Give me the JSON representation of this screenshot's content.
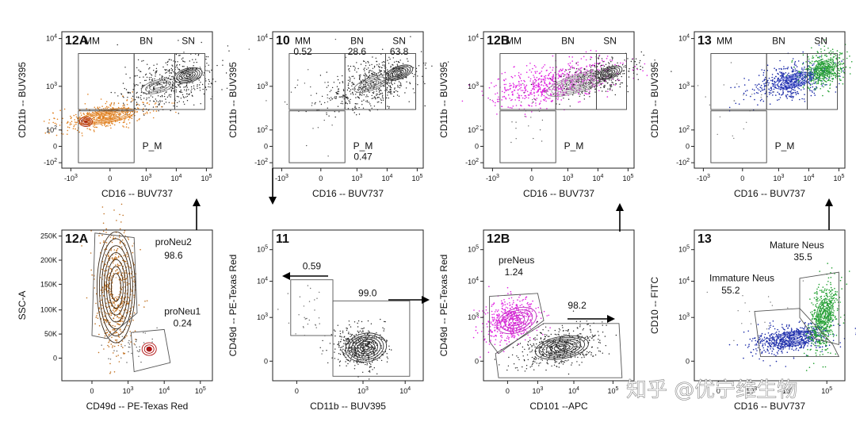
{
  "watermark": "知乎 @优宁维生物",
  "chart_data": [
    {
      "type": "scatter",
      "panel_label": "12A",
      "xlabel": "CD16 -- BUV737",
      "ylabel": "CD11b -- BUV395",
      "x_ticks": [
        "-10 3",
        "0",
        "10 3",
        "10 4",
        "10 5"
      ],
      "y_ticks": [
        "10 4",
        "10 3",
        "10 2",
        "0",
        "-10 2"
      ],
      "gate_labels": [
        "MM",
        "BN",
        "SN",
        "P_M"
      ],
      "populations": [
        {
          "name": "P_M",
          "color": "#e08020",
          "center": [
            400,
            180
          ]
        },
        {
          "name": "SN",
          "color": "#333333",
          "center": [
            32000,
            2000
          ]
        }
      ]
    },
    {
      "type": "scatter",
      "panel_label": "10",
      "xlabel": "CD16 -- BUV737",
      "ylabel": "CD11b -- BUV395",
      "x_ticks": [
        "-10 3",
        "0",
        "10 3",
        "10 4",
        "10 5"
      ],
      "y_ticks": [
        "10 4",
        "10 3",
        "10 2",
        "0",
        "-10 2"
      ],
      "gate_labels": [
        "MM",
        "BN",
        "SN",
        "P_M"
      ],
      "gate_values": [
        "0.52",
        "28.6",
        "63.8",
        "0.47"
      ]
    },
    {
      "type": "scatter",
      "panel_label": "12B",
      "xlabel": "CD16 -- BUV737",
      "ylabel": "CD11b -- BUV395",
      "x_ticks": [
        "-10 3",
        "0",
        "10 3",
        "10 4",
        "10 5"
      ],
      "y_ticks": [
        "10 4",
        "10 3",
        "10 2",
        "0",
        "-10 2"
      ],
      "gate_labels": [
        "MM",
        "BN",
        "SN",
        "P_M"
      ],
      "populations": [
        {
          "name": "preNeus",
          "color": "#e020e0"
        }
      ]
    },
    {
      "type": "scatter",
      "panel_label": "13",
      "xlabel": "CD16 -- BUV737",
      "ylabel": "CD11b -- BUV395",
      "x_ticks": [
        "-10 3",
        "0",
        "10 3",
        "10 4",
        "10 5"
      ],
      "y_ticks": [
        "10 4",
        "10 3",
        "10 2",
        "0",
        "-10 2"
      ],
      "gate_labels": [
        "MM",
        "BN",
        "SN",
        "P_M"
      ],
      "populations": [
        {
          "name": "Immature Neus",
          "color": "#1a2aa8"
        },
        {
          "name": "Mature Neus",
          "color": "#20a030"
        }
      ]
    },
    {
      "type": "scatter",
      "panel_label": "12A",
      "xlabel": "CD49d -- PE-Texas Red",
      "ylabel": "SSC-A",
      "x_ticks": [
        "0",
        "10 3",
        "10 4",
        "10 5"
      ],
      "y_ticks": [
        "250K",
        "200K",
        "150K",
        "100K",
        "50K",
        "0"
      ],
      "gates": [
        {
          "name": "proNeu2",
          "value": "98.6",
          "color": "#e08020"
        },
        {
          "name": "proNeu1",
          "value": "0.24",
          "color": "#d01010"
        }
      ]
    },
    {
      "type": "scatter",
      "panel_label": "11",
      "xlabel": "CD11b -- BUV395",
      "ylabel": "CD49d -- PE-Texas Red",
      "x_ticks": [
        "0",
        "10 3",
        "10 4"
      ],
      "y_ticks": [
        "10 5",
        "10 4",
        "10 3",
        "0"
      ],
      "gates": [
        {
          "value": "0.59"
        },
        {
          "value": "99.0"
        }
      ]
    },
    {
      "type": "scatter",
      "panel_label": "12B",
      "xlabel": "CD101 --APC",
      "ylabel": "CD49d -- PE-Texas Red",
      "x_ticks": [
        "0",
        "10 3",
        "10 4",
        "10 5"
      ],
      "y_ticks": [
        "10 5",
        "10 4",
        "10 3",
        "0"
      ],
      "gates": [
        {
          "name": "preNeus",
          "value": "1.24",
          "color": "#e020e0"
        },
        {
          "value": "98.2"
        }
      ]
    },
    {
      "type": "scatter",
      "panel_label": "13",
      "xlabel": "CD16 -- BUV737",
      "ylabel": "CD10 -- FITC",
      "x_ticks": [
        "0",
        "10 3",
        "10 4",
        "10 5"
      ],
      "y_ticks": [
        "10 5",
        "10 4",
        "10 3",
        "0"
      ],
      "gates": [
        {
          "name": "Mature Neus",
          "value": "35.5",
          "color": "#20a030"
        },
        {
          "name": "Immature Neus",
          "value": "55.2",
          "color": "#1a2aa8"
        }
      ]
    }
  ]
}
